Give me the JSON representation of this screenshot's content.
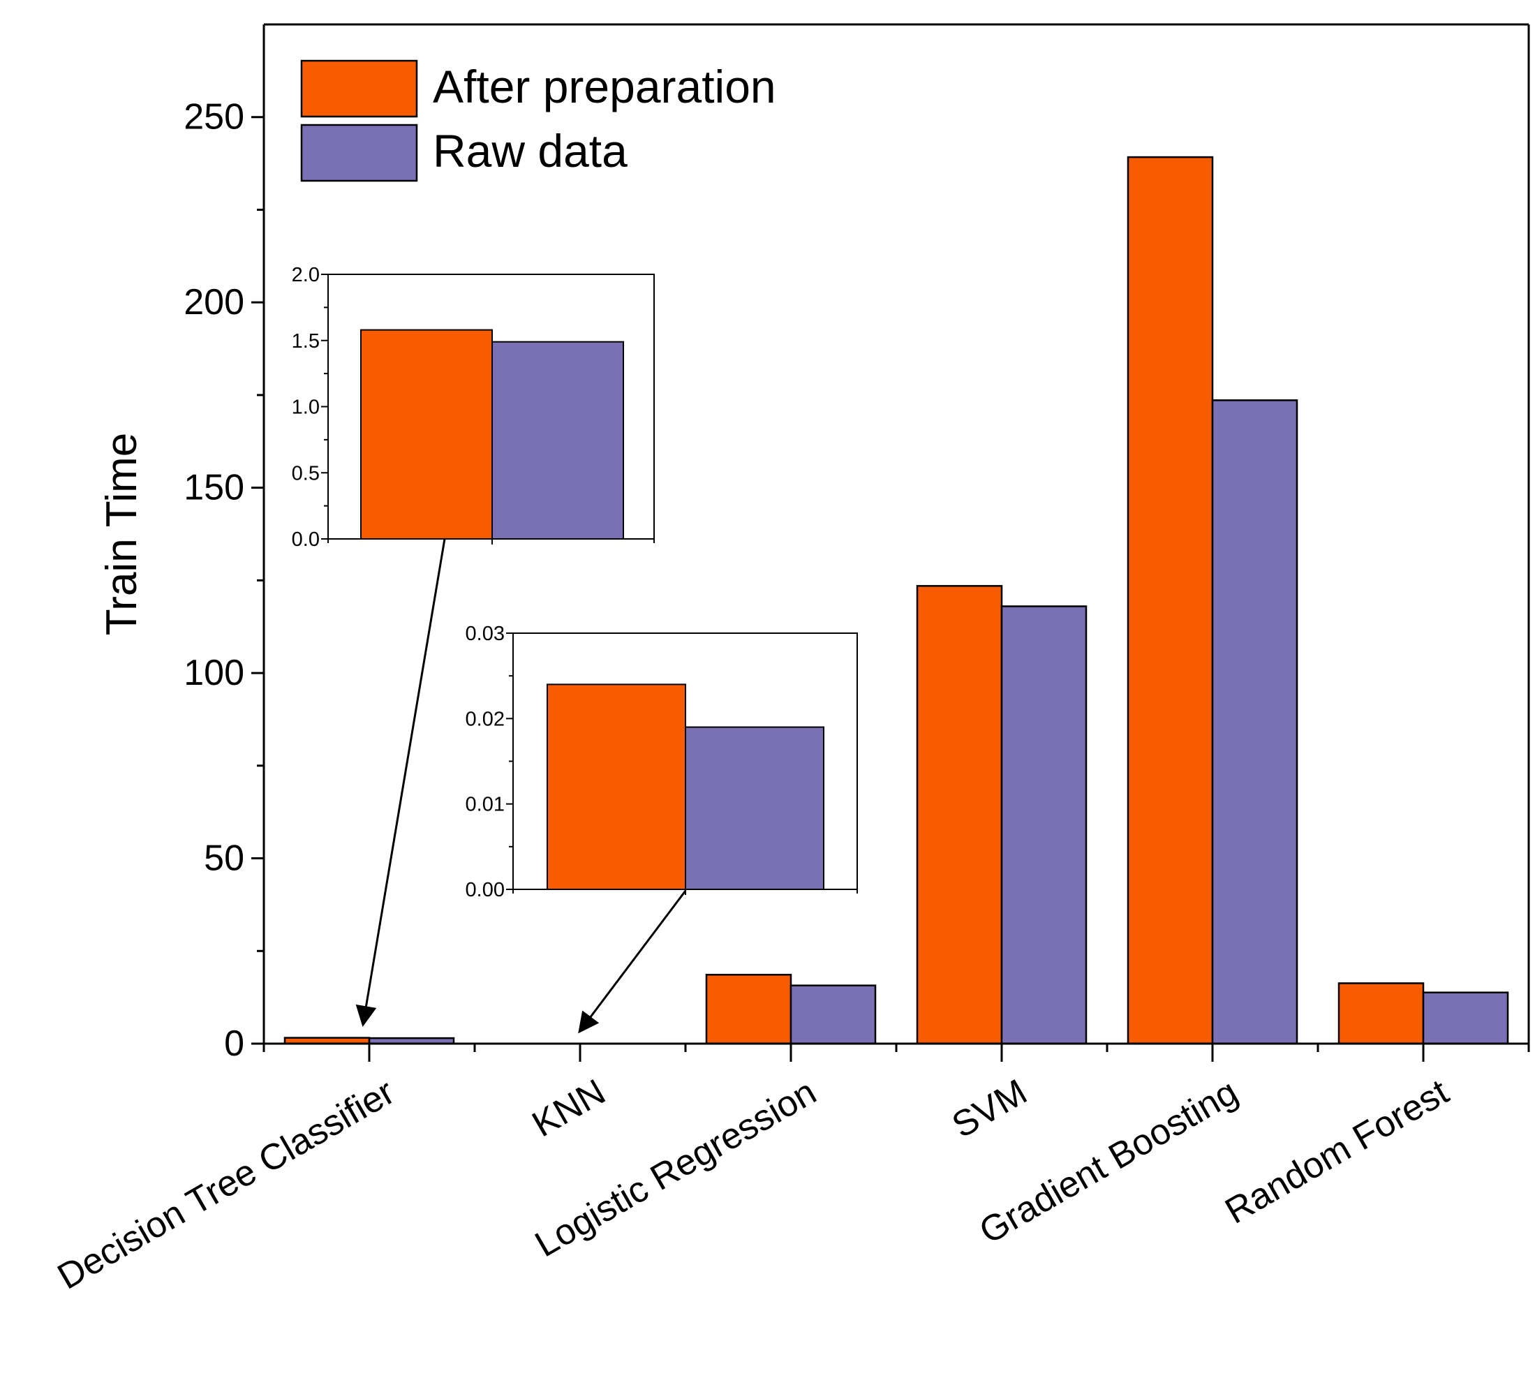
{
  "chart_data": [
    {
      "id": "main",
      "type": "bar",
      "title": "",
      "xlabel": "",
      "ylabel": "Train Time",
      "ylim": [
        0,
        275
      ],
      "yticks": [
        0,
        50,
        100,
        150,
        200,
        250
      ],
      "grid": false,
      "legend_position": "top-left",
      "categories": [
        "Decision Tree Classifier",
        "KNN",
        "Logistic Regression",
        "SVM",
        "Gradient Boosting",
        "Random Forest"
      ],
      "series": [
        {
          "name": "After preparation",
          "color": "#F75C03",
          "values": [
            1.58,
            0.024,
            18.6,
            123.5,
            239.2,
            16.3
          ]
        },
        {
          "name": "Raw data",
          "color": "#7A71B5",
          "values": [
            1.49,
            0.019,
            15.7,
            118.0,
            173.6,
            13.8
          ]
        }
      ]
    },
    {
      "id": "inset-decision-tree",
      "type": "bar",
      "category": "Decision Tree Classifier",
      "ylim": [
        0,
        2.0
      ],
      "yticks": [
        "0.0",
        "0.5",
        "1.0",
        "1.5",
        "2.0"
      ],
      "series": [
        {
          "name": "After preparation",
          "color": "#F75C03",
          "values": [
            1.58
          ]
        },
        {
          "name": "Raw data",
          "color": "#7A71B5",
          "values": [
            1.49
          ]
        }
      ]
    },
    {
      "id": "inset-knn",
      "type": "bar",
      "category": "KNN",
      "ylim": [
        0,
        0.03
      ],
      "yticks": [
        "0.00",
        "0.01",
        "0.02",
        "0.03"
      ],
      "series": [
        {
          "name": "After preparation",
          "color": "#F75C03",
          "values": [
            0.024
          ]
        },
        {
          "name": "Raw data",
          "color": "#7A71B5",
          "values": [
            0.019
          ]
        }
      ]
    }
  ]
}
